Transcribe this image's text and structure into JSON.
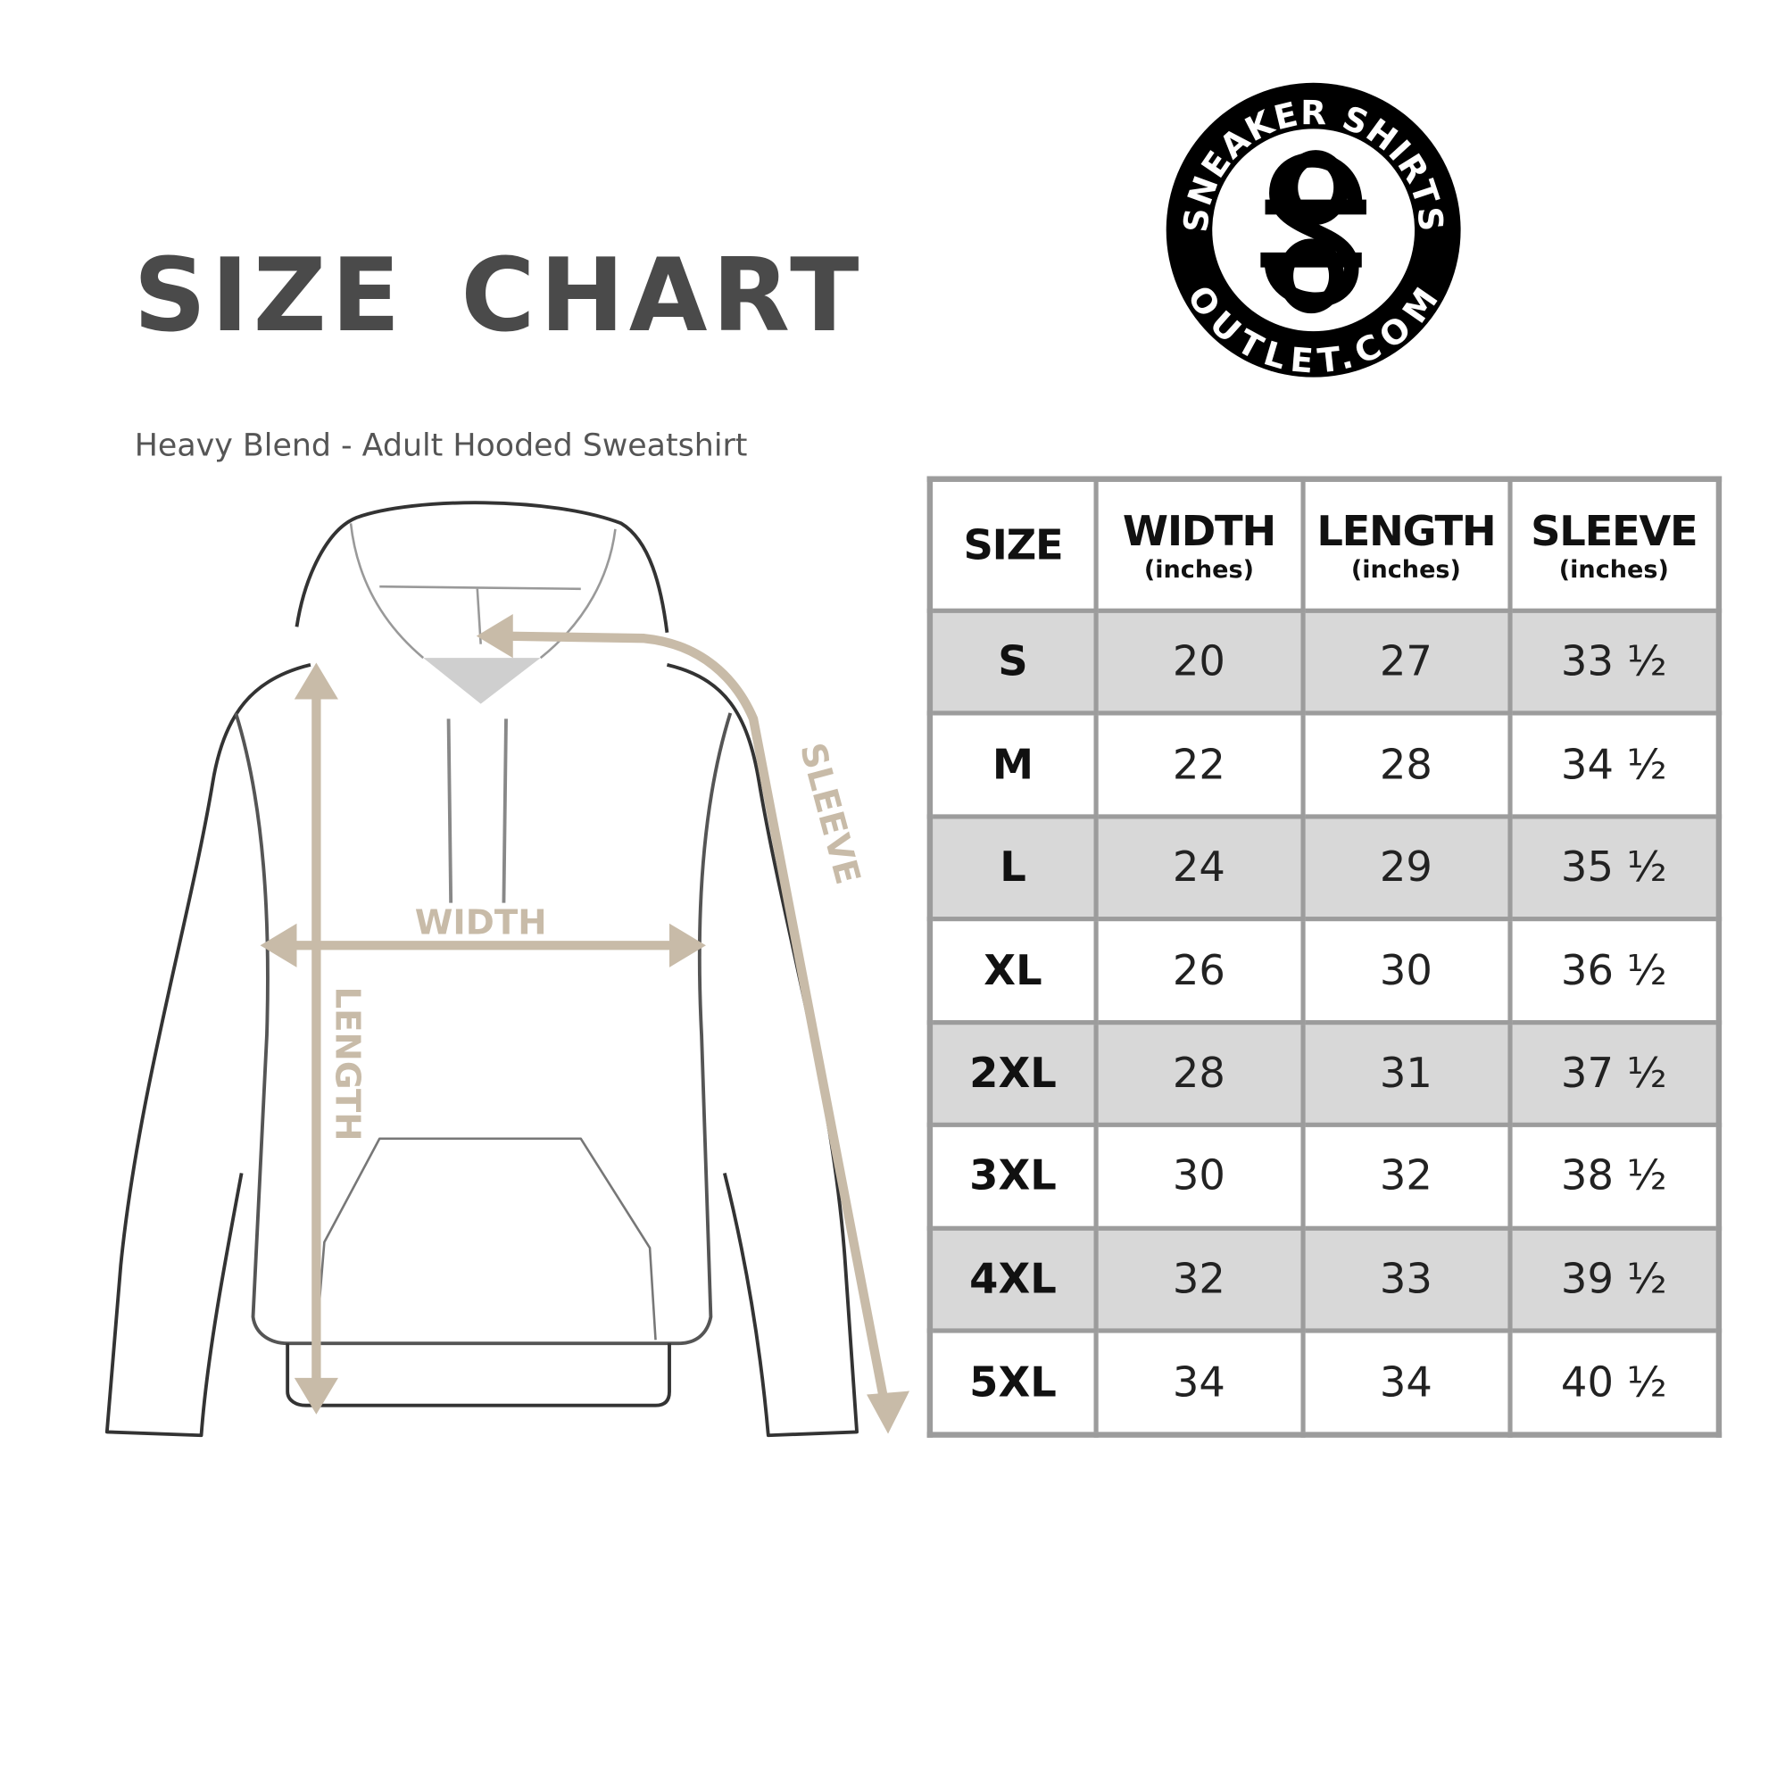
{
  "title": "SIZE CHART",
  "subtitle": "Heavy Blend - Adult Hooded Sweatshirt",
  "logo": {
    "top_text": "SNEAKER SHIRTS",
    "bottom_text": "OUTLET.COM",
    "monogram": "SS"
  },
  "diagram": {
    "width_label": "WIDTH",
    "length_label": "LENGTH",
    "sleeve_label": "SLEEVE",
    "arrow_color": "#c8bba8"
  },
  "table": {
    "headers": [
      {
        "main": "SIZE",
        "unit": ""
      },
      {
        "main": "WIDTH",
        "unit": "(inches)"
      },
      {
        "main": "LENGTH",
        "unit": "(inches)"
      },
      {
        "main": "SLEEVE",
        "unit": "(inches)"
      }
    ],
    "rows": [
      [
        "S",
        "20",
        "27",
        "33 ½"
      ],
      [
        "M",
        "22",
        "28",
        "34 ½"
      ],
      [
        "L",
        "24",
        "29",
        "35 ½"
      ],
      [
        "XL",
        "26",
        "30",
        "36 ½"
      ],
      [
        "2XL",
        "28",
        "31",
        "37 ½"
      ],
      [
        "3XL",
        "30",
        "32",
        "38 ½"
      ],
      [
        "4XL",
        "32",
        "33",
        "39 ½"
      ],
      [
        "5XL",
        "34",
        "34",
        "40 ½"
      ]
    ],
    "shade_color": "#d8d8d8"
  }
}
